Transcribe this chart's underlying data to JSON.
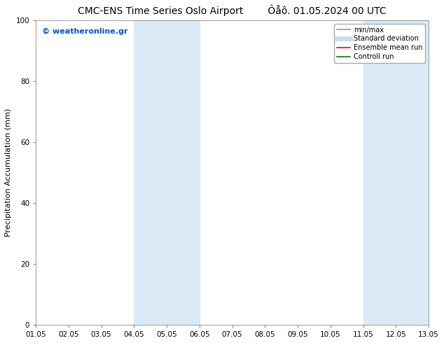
{
  "title": "CMC-ENS Time Series Oslo Airport",
  "title_right": "Ôåô. 01.05.2024 00 UTC",
  "ylabel": "Precipitation Accumulation (mm)",
  "xlim": [
    1.05,
    13.05
  ],
  "ylim": [
    0,
    100
  ],
  "yticks": [
    0,
    20,
    40,
    60,
    80,
    100
  ],
  "xtick_labels": [
    "01.05",
    "02.05",
    "03.05",
    "04.05",
    "05.05",
    "06.05",
    "07.05",
    "08.05",
    "09.05",
    "10.05",
    "11.05",
    "12.05",
    "13.05"
  ],
  "xtick_values": [
    1.05,
    2.05,
    3.05,
    4.05,
    5.05,
    6.05,
    7.05,
    8.05,
    9.05,
    10.05,
    11.05,
    12.05,
    13.05
  ],
  "shaded_regions": [
    {
      "xmin": 4.05,
      "xmax": 6.05
    },
    {
      "xmin": 11.05,
      "xmax": 13.05
    }
  ],
  "shaded_color": "#daeaf7",
  "watermark_text": "© weatheronline.gr",
  "watermark_color": "#0055cc",
  "legend_entries": [
    {
      "label": "min/max",
      "color": "#999999",
      "lw": 1.2,
      "type": "line"
    },
    {
      "label": "Standard deviation",
      "color": "#c8dced",
      "lw": 5,
      "type": "line"
    },
    {
      "label": "Ensemble mean run",
      "color": "red",
      "lw": 1.2,
      "type": "line"
    },
    {
      "label": "Controll run",
      "color": "green",
      "lw": 1.2,
      "type": "line"
    }
  ],
  "bg_color": "#ffffff",
  "title_fontsize": 10,
  "axis_label_fontsize": 8,
  "tick_fontsize": 7.5,
  "legend_fontsize": 7,
  "watermark_fontsize": 8
}
